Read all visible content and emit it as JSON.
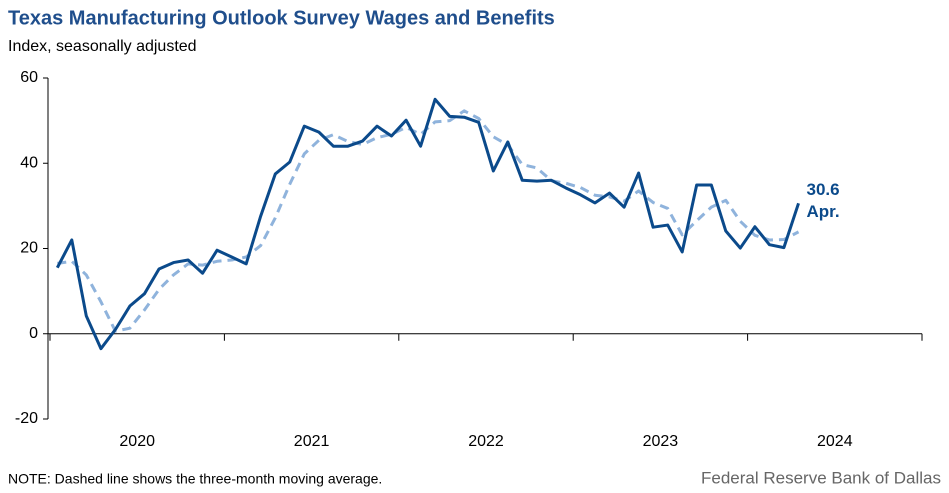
{
  "chart_data": {
    "type": "line",
    "title": "Texas Manufacturing Outlook Survey Wages and Benefits",
    "subtitle": "Index, seasonally adjusted",
    "note": "NOTE: Dashed line shows the three-month  moving average.",
    "source": "Federal Reserve Bank of Dallas",
    "x": [
      2020.042,
      2020.125,
      2020.208,
      2020.292,
      2020.375,
      2020.458,
      2020.542,
      2020.625,
      2020.708,
      2020.792,
      2020.875,
      2020.958,
      2021.042,
      2021.125,
      2021.208,
      2021.292,
      2021.375,
      2021.458,
      2021.542,
      2021.625,
      2021.708,
      2021.792,
      2021.875,
      2021.958,
      2022.042,
      2022.125,
      2022.208,
      2022.292,
      2022.375,
      2022.458,
      2022.542,
      2022.625,
      2022.708,
      2022.792,
      2022.875,
      2022.958,
      2023.042,
      2023.125,
      2023.208,
      2023.292,
      2023.375,
      2023.458,
      2023.542,
      2023.625,
      2023.708,
      2023.792,
      2023.875,
      2023.958,
      2024.042,
      2024.125,
      2024.208,
      2024.292
    ],
    "series": [
      {
        "name": "Wages and benefits index",
        "color": "#0b4a8b",
        "dashed": false,
        "values": [
          15.5,
          22,
          4.2,
          -3.5,
          1,
          6.5,
          9.4,
          15.2,
          16.7,
          17.3,
          14.2,
          19.6,
          18,
          16.4,
          27.6,
          37.5,
          40.3,
          48.7,
          47.3,
          44,
          44,
          45.2,
          48.7,
          46.4,
          50.1,
          44,
          55,
          51,
          50.8,
          49.6,
          38.2,
          45,
          36,
          35.8,
          36,
          34.2,
          32.6,
          30.7,
          33,
          29.7,
          37.7,
          25,
          25.5,
          19.2,
          34.9,
          34.9,
          24.1,
          20.1,
          25.1,
          20.9,
          20.2,
          30.6
        ]
      },
      {
        "name": "Three-month moving average",
        "color": "#8fb3dc",
        "dashed": true,
        "values": [
          16.5,
          17,
          13.8,
          7.5,
          0.6,
          1.3,
          5.6,
          10.4,
          13.8,
          16.4,
          16.1,
          17,
          17.3,
          18,
          20.7,
          27.2,
          35.1,
          42.2,
          45.4,
          46.7,
          45.1,
          44.4,
          46,
          46.8,
          48.4,
          46.8,
          49.7,
          50,
          52.3,
          50.5,
          46.2,
          44.3,
          39.7,
          38.9,
          35.9,
          35.3,
          34.3,
          32.5,
          32.1,
          31.1,
          33.5,
          30.8,
          29.4,
          23.2,
          26.5,
          29.7,
          31.3,
          26.4,
          23.1,
          22,
          22.1,
          23.9
        ]
      }
    ],
    "annotations": [
      "30.6",
      "Apr."
    ],
    "xlim": [
      2020,
      2025
    ],
    "xticks": [
      2020,
      2021,
      2022,
      2023,
      2024,
      2025
    ],
    "x_labels": [
      {
        "value": 2020.5,
        "label": "2020"
      },
      {
        "value": 2021.5,
        "label": "2021"
      },
      {
        "value": 2022.5,
        "label": "2022"
      },
      {
        "value": 2023.5,
        "label": "2023"
      },
      {
        "value": 2024.5,
        "label": "2024"
      }
    ],
    "ylim": [
      -20,
      60
    ],
    "yticks": [
      -20,
      0,
      20,
      40,
      60
    ],
    "grid": false
  }
}
